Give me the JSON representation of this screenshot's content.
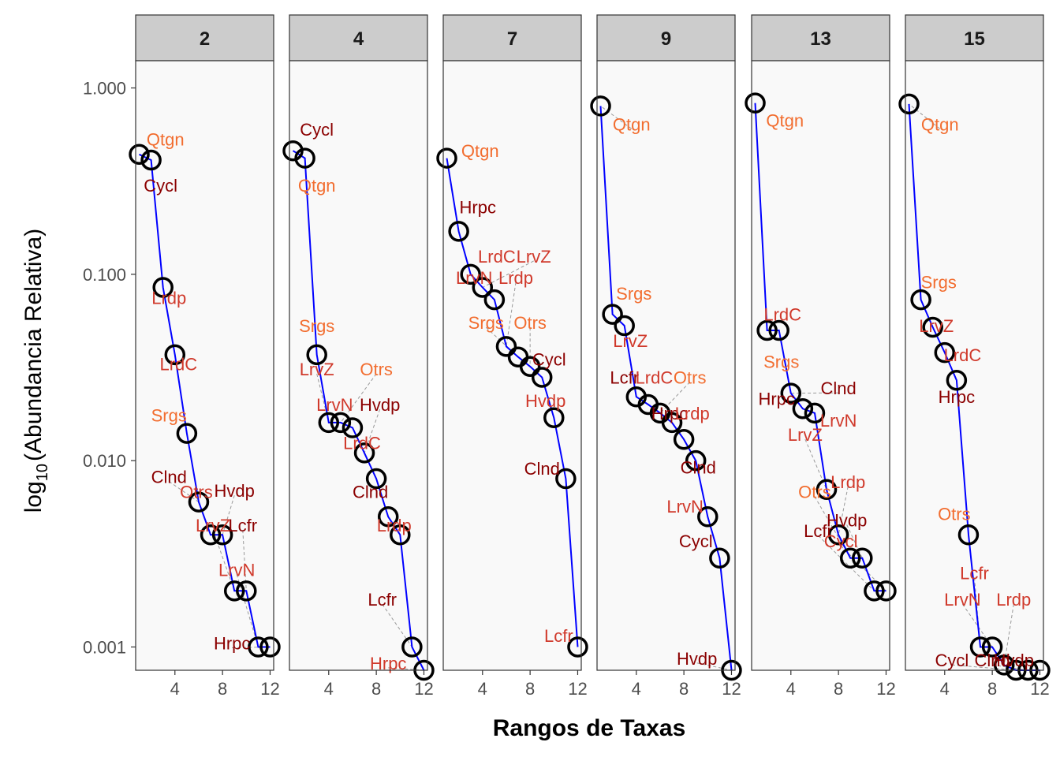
{
  "chart_data": {
    "type": "line",
    "xlabel": "Rangos de Taxas",
    "ylabel_main": "log",
    "ylabel_sub": "10",
    "ylabel_rest": "(Abundancia Relativa)",
    "y_scale": "log10",
    "ylim": [
      0.00075,
      1.4
    ],
    "xlim": [
      0.7,
      12.3
    ],
    "x_ticks": [
      4,
      8,
      12
    ],
    "x_tick_labels": [
      "4",
      "8",
      "12"
    ],
    "y_ticks": [
      0.001,
      0.01,
      0.1,
      1.0
    ],
    "y_tick_labels": [
      "0.001",
      "0.010",
      "0.100",
      "1.000"
    ],
    "grid": false,
    "colors": {
      "line": "#0000ff",
      "points": "#000000",
      "panel_bg": "#f9f9f9",
      "strip_bg": "#cccccc",
      "label_orange": "#f26d2f",
      "label_red": "#d0392b",
      "label_darkred": "#8b0000",
      "connector": "#999999"
    },
    "panels": [
      {
        "title": "2",
        "points": [
          {
            "x": 1,
            "y": 0.44
          },
          {
            "x": 2,
            "y": 0.41
          },
          {
            "x": 3,
            "y": 0.085
          },
          {
            "x": 4,
            "y": 0.037
          },
          {
            "x": 5,
            "y": 0.014
          },
          {
            "x": 6,
            "y": 0.006
          },
          {
            "x": 7,
            "y": 0.004
          },
          {
            "x": 8,
            "y": 0.004
          },
          {
            "x": 9,
            "y": 0.002
          },
          {
            "x": 10,
            "y": 0.002
          },
          {
            "x": 11,
            "y": 0.001
          },
          {
            "x": 12,
            "y": 0.001
          }
        ],
        "labels": [
          {
            "text": "Qtgn",
            "x": 3.2,
            "y": 0.53,
            "color": "orange"
          },
          {
            "text": "Cycl",
            "x": 2.8,
            "y": 0.3,
            "color": "darkred"
          },
          {
            "text": "Lrdp",
            "x": 3.5,
            "y": 0.075,
            "color": "red"
          },
          {
            "text": "LrdC",
            "x": 4.3,
            "y": 0.033,
            "color": "red"
          },
          {
            "text": "Srgs",
            "x": 3.5,
            "y": 0.0175,
            "color": "orange"
          },
          {
            "text": "Clnd",
            "x": 3.5,
            "y": 0.0082,
            "color": "darkred"
          },
          {
            "text": "Otrs",
            "x": 5.8,
            "y": 0.0068,
            "color": "red"
          },
          {
            "text": "Hvdp",
            "x": 9.0,
            "y": 0.0069,
            "color": "darkred"
          },
          {
            "text": "LrvZ",
            "x": 7.2,
            "y": 0.0045,
            "color": "red"
          },
          {
            "text": "Lcfr",
            "x": 9.7,
            "y": 0.0045,
            "color": "darkred"
          },
          {
            "text": "LrvN",
            "x": 9.2,
            "y": 0.0026,
            "color": "red"
          },
          {
            "text": "Hrpc",
            "x": 8.8,
            "y": 0.00105,
            "color": "darkred"
          }
        ]
      },
      {
        "title": "4",
        "points": [
          {
            "x": 1,
            "y": 0.46
          },
          {
            "x": 2,
            "y": 0.42
          },
          {
            "x": 3,
            "y": 0.037
          },
          {
            "x": 4,
            "y": 0.016
          },
          {
            "x": 5,
            "y": 0.016
          },
          {
            "x": 6,
            "y": 0.015
          },
          {
            "x": 7,
            "y": 0.011
          },
          {
            "x": 8,
            "y": 0.008
          },
          {
            "x": 9,
            "y": 0.005
          },
          {
            "x": 10,
            "y": 0.004
          },
          {
            "x": 11,
            "y": 0.001
          },
          {
            "x": 12,
            "y": 0.00075
          }
        ],
        "labels": [
          {
            "text": "Cycl",
            "x": 3.0,
            "y": 0.6,
            "color": "darkred"
          },
          {
            "text": "Qtgn",
            "x": 3.0,
            "y": 0.3,
            "color": "orange"
          },
          {
            "text": "Srgs",
            "x": 3.0,
            "y": 0.053,
            "color": "orange"
          },
          {
            "text": "LrvZ",
            "x": 3.0,
            "y": 0.031,
            "color": "red"
          },
          {
            "text": "Otrs",
            "x": 8.0,
            "y": 0.031,
            "color": "orange"
          },
          {
            "text": "LrvN",
            "x": 4.5,
            "y": 0.02,
            "color": "red"
          },
          {
            "text": "Hvdp",
            "x": 8.3,
            "y": 0.02,
            "color": "darkred"
          },
          {
            "text": "LrdC",
            "x": 6.8,
            "y": 0.0125,
            "color": "red"
          },
          {
            "text": "Clnd",
            "x": 7.5,
            "y": 0.0068,
            "color": "darkred"
          },
          {
            "text": "Lrdp",
            "x": 9.5,
            "y": 0.0045,
            "color": "red"
          },
          {
            "text": "Lcfr",
            "x": 8.5,
            "y": 0.0018,
            "color": "darkred"
          },
          {
            "text": "Hrpc",
            "x": 9.0,
            "y": 0.00082,
            "color": "red"
          }
        ]
      },
      {
        "title": "7",
        "points": [
          {
            "x": 1,
            "y": 0.42
          },
          {
            "x": 2,
            "y": 0.17
          },
          {
            "x": 3,
            "y": 0.1
          },
          {
            "x": 4,
            "y": 0.085
          },
          {
            "x": 5,
            "y": 0.073
          },
          {
            "x": 6,
            "y": 0.041
          },
          {
            "x": 7,
            "y": 0.036
          },
          {
            "x": 8,
            "y": 0.032
          },
          {
            "x": 9,
            "y": 0.028
          },
          {
            "x": 10,
            "y": 0.017
          },
          {
            "x": 11,
            "y": 0.008
          },
          {
            "x": 12,
            "y": 0.001
          }
        ],
        "labels": [
          {
            "text": "Qtgn",
            "x": 3.8,
            "y": 0.46,
            "color": "orange"
          },
          {
            "text": "Hrpc",
            "x": 3.6,
            "y": 0.23,
            "color": "darkred"
          },
          {
            "text": "LrdC",
            "x": 5.2,
            "y": 0.125,
            "color": "red"
          },
          {
            "text": "LrvZ",
            "x": 8.3,
            "y": 0.125,
            "color": "red"
          },
          {
            "text": "LrvN",
            "x": 3.3,
            "y": 0.096,
            "color": "red"
          },
          {
            "text": "Lrdp",
            "x": 6.8,
            "y": 0.096,
            "color": "red"
          },
          {
            "text": "Srgs",
            "x": 4.3,
            "y": 0.055,
            "color": "orange"
          },
          {
            "text": "Otrs",
            "x": 8.0,
            "y": 0.055,
            "color": "orange"
          },
          {
            "text": "Cycl",
            "x": 9.6,
            "y": 0.035,
            "color": "darkred"
          },
          {
            "text": "Hvdp",
            "x": 9.3,
            "y": 0.021,
            "color": "red"
          },
          {
            "text": "Clnd",
            "x": 9.0,
            "y": 0.0091,
            "color": "darkred"
          },
          {
            "text": "Lcfr",
            "x": 10.4,
            "y": 0.00115,
            "color": "red"
          }
        ]
      },
      {
        "title": "9",
        "points": [
          {
            "x": 1,
            "y": 0.8
          },
          {
            "x": 2,
            "y": 0.061
          },
          {
            "x": 3,
            "y": 0.053
          },
          {
            "x": 4,
            "y": 0.022
          },
          {
            "x": 5,
            "y": 0.02
          },
          {
            "x": 6,
            "y": 0.018
          },
          {
            "x": 7,
            "y": 0.016
          },
          {
            "x": 8,
            "y": 0.013
          },
          {
            "x": 9,
            "y": 0.01
          },
          {
            "x": 10,
            "y": 0.005
          },
          {
            "x": 11,
            "y": 0.003
          },
          {
            "x": 12,
            "y": 0.00075
          }
        ],
        "labels": [
          {
            "text": "Qtgn",
            "x": 3.6,
            "y": 0.64,
            "color": "orange"
          },
          {
            "text": "Srgs",
            "x": 3.8,
            "y": 0.079,
            "color": "orange"
          },
          {
            "text": "LrvZ",
            "x": 3.5,
            "y": 0.044,
            "color": "red"
          },
          {
            "text": "Lcfr",
            "x": 3.0,
            "y": 0.028,
            "color": "darkred"
          },
          {
            "text": "LrdC",
            "x": 5.5,
            "y": 0.028,
            "color": "red"
          },
          {
            "text": "Otrs",
            "x": 8.5,
            "y": 0.028,
            "color": "orange"
          },
          {
            "text": "Hrpc",
            "x": 6.8,
            "y": 0.018,
            "color": "darkred"
          },
          {
            "text": "Lrdp",
            "x": 8.7,
            "y": 0.018,
            "color": "red"
          },
          {
            "text": "Clnd",
            "x": 9.2,
            "y": 0.0092,
            "color": "darkred"
          },
          {
            "text": "LrvN",
            "x": 8.1,
            "y": 0.0057,
            "color": "red"
          },
          {
            "text": "Cycl",
            "x": 9.0,
            "y": 0.0037,
            "color": "darkred"
          },
          {
            "text": "Hvdp",
            "x": 9.1,
            "y": 0.00087,
            "color": "darkred"
          }
        ]
      },
      {
        "title": "13",
        "points": [
          {
            "x": 1,
            "y": 0.83
          },
          {
            "x": 2,
            "y": 0.05
          },
          {
            "x": 3,
            "y": 0.05
          },
          {
            "x": 4,
            "y": 0.023
          },
          {
            "x": 5,
            "y": 0.019
          },
          {
            "x": 6,
            "y": 0.018
          },
          {
            "x": 7,
            "y": 0.007
          },
          {
            "x": 8,
            "y": 0.004
          },
          {
            "x": 9,
            "y": 0.003
          },
          {
            "x": 10,
            "y": 0.003
          },
          {
            "x": 11,
            "y": 0.002
          },
          {
            "x": 12,
            "y": 0.002
          }
        ],
        "labels": [
          {
            "text": "Qtgn",
            "x": 3.5,
            "y": 0.67,
            "color": "orange"
          },
          {
            "text": "LrdC",
            "x": 3.3,
            "y": 0.061,
            "color": "red"
          },
          {
            "text": "Srgs",
            "x": 3.2,
            "y": 0.034,
            "color": "orange"
          },
          {
            "text": "Clnd",
            "x": 8.0,
            "y": 0.0245,
            "color": "darkred"
          },
          {
            "text": "Hrpc",
            "x": 2.8,
            "y": 0.0215,
            "color": "darkred"
          },
          {
            "text": "LrvN",
            "x": 8.0,
            "y": 0.0165,
            "color": "red"
          },
          {
            "text": "LrvZ",
            "x": 5.2,
            "y": 0.0138,
            "color": "red"
          },
          {
            "text": "Lrdp",
            "x": 8.8,
            "y": 0.0077,
            "color": "red"
          },
          {
            "text": "Otrs",
            "x": 6.0,
            "y": 0.0068,
            "color": "orange"
          },
          {
            "text": "Hvdp",
            "x": 8.7,
            "y": 0.0048,
            "color": "darkred"
          },
          {
            "text": "Lcfr",
            "x": 6.3,
            "y": 0.0042,
            "color": "darkred"
          },
          {
            "text": "Cycl",
            "x": 8.2,
            "y": 0.0037,
            "color": "red"
          }
        ]
      },
      {
        "title": "15",
        "points": [
          {
            "x": 1,
            "y": 0.82
          },
          {
            "x": 2,
            "y": 0.073
          },
          {
            "x": 3,
            "y": 0.052
          },
          {
            "x": 4,
            "y": 0.038
          },
          {
            "x": 5,
            "y": 0.027
          },
          {
            "x": 6,
            "y": 0.004
          },
          {
            "x": 7,
            "y": 0.001
          },
          {
            "x": 8,
            "y": 0.001
          },
          {
            "x": 9,
            "y": 0.0008
          },
          {
            "x": 10,
            "y": 0.00075
          },
          {
            "x": 11,
            "y": 0.00075
          },
          {
            "x": 12,
            "y": 0.00075
          }
        ],
        "labels": [
          {
            "text": "Qtgn",
            "x": 3.6,
            "y": 0.64,
            "color": "orange"
          },
          {
            "text": "Srgs",
            "x": 3.5,
            "y": 0.091,
            "color": "orange"
          },
          {
            "text": "LrvZ",
            "x": 3.3,
            "y": 0.053,
            "color": "red"
          },
          {
            "text": "LrdC",
            "x": 5.5,
            "y": 0.037,
            "color": "red"
          },
          {
            "text": "Hrpc",
            "x": 5.0,
            "y": 0.022,
            "color": "darkred"
          },
          {
            "text": "Otrs",
            "x": 4.8,
            "y": 0.0052,
            "color": "orange"
          },
          {
            "text": "Lcfr",
            "x": 6.5,
            "y": 0.0025,
            "color": "red"
          },
          {
            "text": "LrvN",
            "x": 5.5,
            "y": 0.0018,
            "color": "red"
          },
          {
            "text": "Lrdp",
            "x": 9.8,
            "y": 0.0018,
            "color": "red"
          },
          {
            "text": "Cycl",
            "x": 4.6,
            "y": 0.00085,
            "color": "darkred"
          },
          {
            "text": "Clnd",
            "x": 8.0,
            "y": 0.00085,
            "color": "darkred"
          },
          {
            "text": "Hvdp",
            "x": 9.8,
            "y": 0.00085,
            "color": "darkred"
          }
        ]
      }
    ]
  }
}
